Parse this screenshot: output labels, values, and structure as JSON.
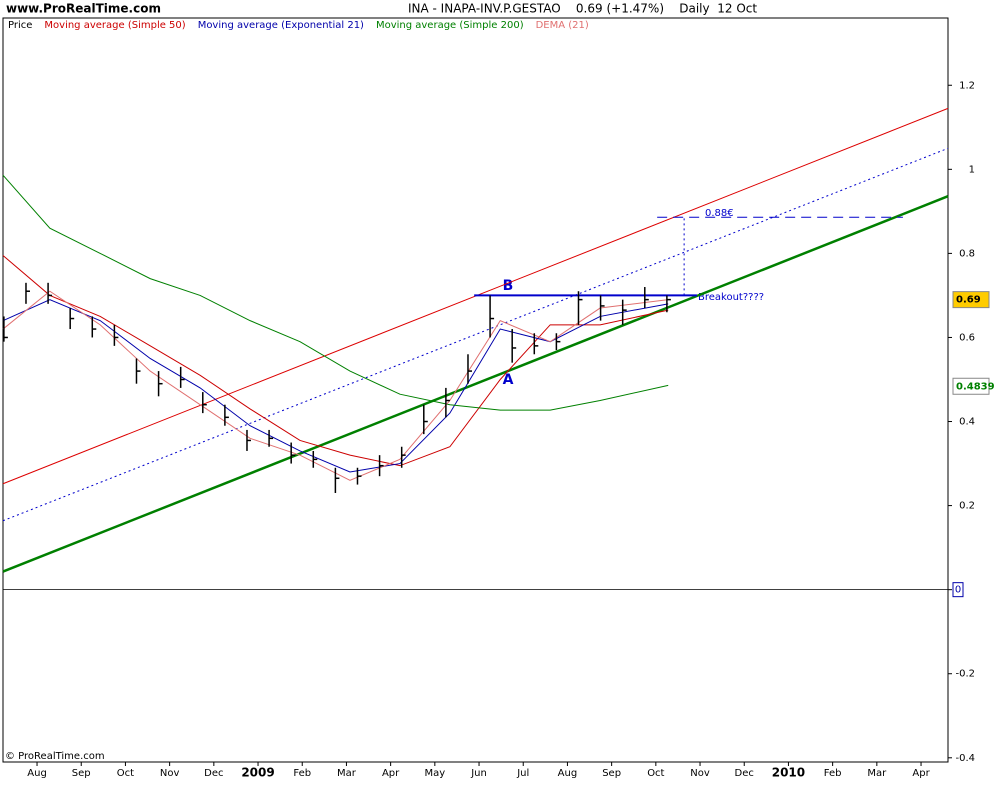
{
  "chart_data": {
    "type": "candlestick",
    "site": "www.ProRealTime.com",
    "title": "INA - INAPA-INV.P.GESTAO    0.69 (+1.47%)    Daily  12 Oct",
    "copyright": "© ProRealTime.com",
    "price_name": "Price",
    "price_color": "#000000",
    "x": [
      -0.75,
      -0.25,
      0.25,
      0.75,
      1.25,
      1.75,
      2.25,
      2.75,
      3.25,
      3.75,
      4.25,
      4.75,
      5.25,
      5.75,
      6.25,
      6.75,
      7.25,
      7.75,
      8.25,
      8.75,
      9.25,
      9.75,
      10.25,
      10.75,
      11.25,
      11.75,
      12.25,
      12.75,
      13.25,
      13.75,
      14.25
    ],
    "high": [
      0.65,
      0.73,
      0.73,
      0.67,
      0.65,
      0.63,
      0.55,
      0.52,
      0.53,
      0.47,
      0.44,
      0.38,
      0.38,
      0.35,
      0.33,
      0.29,
      0.29,
      0.32,
      0.34,
      0.44,
      0.48,
      0.56,
      0.7,
      0.62,
      0.61,
      0.61,
      0.71,
      0.7,
      0.69,
      0.72,
      0.7
    ],
    "low": [
      0.59,
      0.68,
      0.68,
      0.62,
      0.6,
      0.58,
      0.49,
      0.46,
      0.48,
      0.42,
      0.39,
      0.33,
      0.34,
      0.3,
      0.29,
      0.23,
      0.25,
      0.27,
      0.29,
      0.37,
      0.41,
      0.49,
      0.6,
      0.54,
      0.56,
      0.57,
      0.63,
      0.64,
      0.63,
      0.67,
      0.66
    ],
    "close": [
      0.6,
      0.71,
      0.7,
      0.645,
      0.62,
      0.6,
      0.52,
      0.49,
      0.5,
      0.44,
      0.41,
      0.355,
      0.36,
      0.32,
      0.31,
      0.265,
      0.27,
      0.295,
      0.32,
      0.4,
      0.45,
      0.52,
      0.645,
      0.575,
      0.58,
      0.59,
      0.69,
      0.675,
      0.665,
      0.69,
      0.69
    ],
    "series": [
      {
        "name": "Moving average (Simple 50)",
        "color": "#cc0000",
        "x": [
          -0.77,
          0.29,
          1.43,
          2.56,
          3.69,
          4.82,
          5.95,
          7.08,
          8.21,
          9.34,
          10.48,
          11.61,
          12.74,
          14.28
        ],
        "values": [
          0.795,
          0.7,
          0.65,
          0.58,
          0.51,
          0.43,
          0.355,
          0.32,
          0.295,
          0.34,
          0.5,
          0.63,
          0.63,
          0.665
        ]
      },
      {
        "name": "Moving average (Exponential 21)",
        "color": "#0000aa",
        "x": [
          -0.77,
          0.29,
          1.43,
          2.56,
          3.69,
          4.82,
          5.95,
          7.08,
          8.21,
          9.34,
          10.48,
          11.61,
          12.74,
          14.28
        ],
        "values": [
          0.64,
          0.69,
          0.64,
          0.55,
          0.48,
          0.39,
          0.33,
          0.28,
          0.3,
          0.42,
          0.62,
          0.59,
          0.65,
          0.68
        ]
      },
      {
        "name": "Moving average (Simple 200)",
        "color": "#008000",
        "x": [
          -0.77,
          0.29,
          1.43,
          2.56,
          3.69,
          4.82,
          5.95,
          7.08,
          8.21,
          9.34,
          10.48,
          11.61,
          12.74,
          14.28
        ],
        "values": [
          0.986,
          0.86,
          0.8,
          0.74,
          0.7,
          0.64,
          0.59,
          0.52,
          0.465,
          0.44,
          0.427,
          0.427,
          0.45,
          0.486
        ]
      },
      {
        "name": "DEMA (21)",
        "color": "#e07070",
        "x": [
          -0.77,
          0.29,
          1.43,
          2.56,
          3.69,
          4.82,
          5.95,
          7.08,
          8.21,
          9.34,
          10.48,
          11.61,
          12.74,
          14.28
        ],
        "values": [
          0.62,
          0.71,
          0.63,
          0.52,
          0.44,
          0.36,
          0.32,
          0.26,
          0.31,
          0.45,
          0.64,
          0.59,
          0.67,
          0.69
        ]
      }
    ],
    "trendlines": [
      {
        "x": [
          -0.77,
          20.61
        ],
        "y": [
          0.252,
          1.145
        ],
        "color": "#dd0000",
        "width": 1,
        "style": "solid"
      },
      {
        "x": [
          -0.77,
          20.61
        ],
        "y": [
          0.164,
          1.05
        ],
        "color": "#0000cc",
        "width": 1,
        "style": "dotted"
      },
      {
        "x": [
          -0.77,
          20.61
        ],
        "y": [
          0.043,
          0.936
        ],
        "color": "#008000",
        "width": 2.5,
        "style": "solid"
      },
      {
        "x": [
          9.89,
          14.93
        ],
        "y": [
          0.7,
          0.7
        ],
        "color": "#0000cc",
        "width": 2,
        "style": "solid"
      },
      {
        "x": [
          14.03,
          19.59
        ],
        "y": [
          0.886,
          0.886
        ],
        "color": "#0000cc",
        "width": 1,
        "style": "dashed"
      },
      {
        "x": [
          14.64,
          14.64
        ],
        "y": [
          0.7,
          0.886
        ],
        "color": "#0000cc",
        "width": 1,
        "style": "dotted"
      }
    ],
    "annotations": {
      "b": "B",
      "a": "A",
      "breakout": "Breakout????",
      "target": "0.88€"
    },
    "price_tags": [
      {
        "value": 0.69,
        "color": "#000000",
        "background": "#ffcc00"
      },
      {
        "value": 0.4839,
        "color": "#008000",
        "background": "#ffffff"
      }
    ],
    "zero_line": true,
    "xlim": [
      -0.77,
      20.61
    ],
    "ylim": [
      -0.41,
      1.36
    ],
    "yticks": [
      -0.4,
      -0.2,
      0,
      0.2,
      0.4,
      0.6,
      0.8,
      1,
      1.2
    ],
    "xticks": [
      {
        "value": 0,
        "label": "Aug"
      },
      {
        "value": 1,
        "label": "Sep"
      },
      {
        "value": 2,
        "label": "Oct"
      },
      {
        "value": 3,
        "label": "Nov"
      },
      {
        "value": 4,
        "label": "Dec"
      },
      {
        "value": 5,
        "label": "2009"
      },
      {
        "value": 6,
        "label": "Feb"
      },
      {
        "value": 7,
        "label": "Mar"
      },
      {
        "value": 8,
        "label": "Apr"
      },
      {
        "value": 9,
        "label": "May"
      },
      {
        "value": 10,
        "label": "Jun"
      },
      {
        "value": 11,
        "label": "Jul"
      },
      {
        "value": 12,
        "label": "Aug"
      },
      {
        "value": 13,
        "label": "Sep"
      },
      {
        "value": 14,
        "label": "Oct"
      },
      {
        "value": 15,
        "label": "Nov"
      },
      {
        "value": 16,
        "label": "Dec"
      },
      {
        "value": 17,
        "label": "2010"
      },
      {
        "value": 18,
        "label": "Feb"
      },
      {
        "value": 19,
        "label": "Mar"
      },
      {
        "value": 20,
        "label": "Apr"
      }
    ]
  }
}
